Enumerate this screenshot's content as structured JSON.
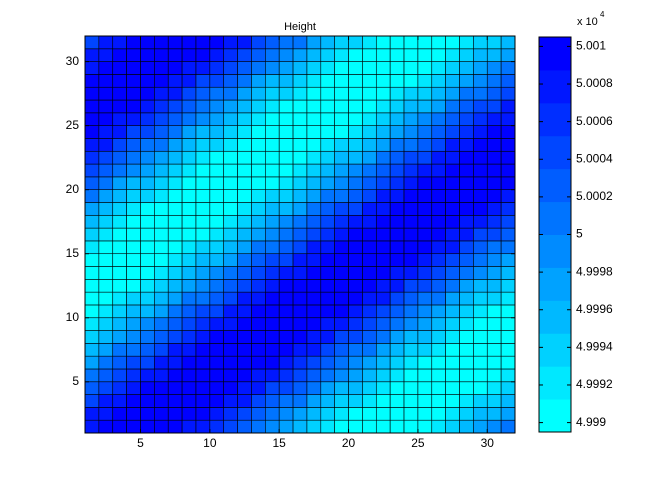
{
  "chart_data": {
    "type": "heatmap",
    "title": "Height",
    "xlim": [
      1,
      32
    ],
    "ylim": [
      1,
      32
    ],
    "xticks": [
      5,
      10,
      15,
      20,
      25,
      30
    ],
    "yticks": [
      5,
      10,
      15,
      20,
      25,
      30
    ],
    "clim": [
      4.99895,
      5.00105
    ],
    "colorbar_ticks": [
      4.999,
      4.9992,
      4.9994,
      4.9996,
      4.9998,
      5,
      5.0002,
      5.0004,
      5.0006,
      5.0008,
      5.001
    ],
    "colorbar_multiplier": {
      "base": "x 10",
      "exponent": "4"
    },
    "colormap": [
      "#00ffff",
      "#00e8ff",
      "#00d1ff",
      "#00b9ff",
      "#00a2ff",
      "#008bff",
      "#0074ff",
      "#005dff",
      "#0046ff",
      "#002eff",
      "#0017ff",
      "#0000ff"
    ],
    "edge_color": "#000000",
    "values": [
      [
        5.0008,
        5.0009,
        5.001,
        5.001,
        5.001,
        5.001,
        5.0009,
        5.0008,
        5.0007,
        5.0006,
        5.0004,
        5.0002,
        5,
        4.9999,
        4.9997,
        4.9995,
        4.9993,
        4.9992,
        4.9991,
        4.999,
        4.999,
        4.999,
        4.999,
        4.999,
        4.9991,
        4.9992,
        4.9993,
        4.9995,
        4.9997,
        4.9999,
        5
      ],
      [
        5.0007,
        5.0008,
        5.0009,
        5.001,
        5.001,
        5.001,
        5.001,
        5.001,
        5.0009,
        5.0008,
        5.0006,
        5.0005,
        5.0003,
        5.0001,
        4.9999,
        4.9997,
        4.9995,
        4.9994,
        4.9992,
        4.9991,
        4.999,
        4.999,
        4.999,
        4.999,
        4.999,
        4.9991,
        4.9992,
        4.9993,
        4.9995,
        4.9996,
        4.9998
      ],
      [
        5.0005,
        5.0007,
        5.0008,
        5.0009,
        5.001,
        5.001,
        5.001,
        5.001,
        5.001,
        5.0009,
        5.0008,
        5.0007,
        5.0005,
        5.0003,
        5.0001,
        5,
        4.9998,
        4.9996,
        4.9994,
        4.9993,
        4.9992,
        4.9991,
        4.999,
        4.999,
        4.999,
        4.999,
        4.9991,
        4.9992,
        4.9993,
        4.9994,
        4.9996
      ],
      [
        5.0003,
        5.0005,
        5.0006,
        5.0008,
        5.0009,
        5.001,
        5.001,
        5.001,
        5.001,
        5.001,
        5.0009,
        5.0008,
        5.0007,
        5.0005,
        5.0004,
        5.0002,
        5,
        4.9998,
        4.9996,
        4.9995,
        4.9993,
        4.9992,
        4.9991,
        4.999,
        4.999,
        4.999,
        4.999,
        4.999,
        4.9991,
        4.9992,
        4.9994
      ],
      [
        5,
        5.0002,
        5.0004,
        5.0006,
        5.0007,
        5.0008,
        5.0009,
        5.001,
        5.001,
        5.001,
        5.001,
        5.0009,
        5.0008,
        5.0007,
        5.0006,
        5.0004,
        5.0002,
        5,
        4.9999,
        4.9997,
        4.9995,
        4.9993,
        4.9992,
        4.9991,
        4.999,
        4.999,
        4.999,
        4.999,
        4.999,
        4.9991,
        4.9992
      ],
      [
        4.9998,
        5,
        5.0002,
        5.0004,
        5.0005,
        5.0007,
        5.0008,
        5.0009,
        5.001,
        5.001,
        5.001,
        5.001,
        5.001,
        5.0009,
        5.0008,
        5.0006,
        5.0005,
        5.0003,
        5.0001,
        4.9999,
        4.9997,
        4.9995,
        4.9994,
        4.9992,
        4.9991,
        4.999,
        4.999,
        4.999,
        4.999,
        4.999,
        4.9991
      ],
      [
        4.9996,
        4.9998,
        5,
        5.0001,
        5.0003,
        5.0005,
        5.0007,
        5.0008,
        5.0009,
        5.001,
        5.001,
        5.001,
        5.001,
        5.001,
        5.0009,
        5.0008,
        5.0007,
        5.0005,
        5.0003,
        5.0001,
        5,
        4.9998,
        4.9996,
        4.9994,
        4.9993,
        4.9992,
        4.9991,
        4.999,
        4.999,
        4.999,
        4.999
      ],
      [
        4.9994,
        4.9995,
        4.9997,
        4.9999,
        5.0001,
        5.0003,
        5.0005,
        5.0006,
        5.0008,
        5.0009,
        5.001,
        5.001,
        5.001,
        5.001,
        5.001,
        5.0009,
        5.0008,
        5.0007,
        5.0005,
        5.0004,
        5.0002,
        5,
        4.9998,
        4.9996,
        4.9995,
        4.9993,
        4.9992,
        4.9991,
        4.999,
        4.999,
        4.999
      ],
      [
        4.9992,
        4.9993,
        4.9995,
        4.9997,
        4.9999,
        5,
        5.0002,
        5.0004,
        5.0006,
        5.0007,
        5.0008,
        5.0009,
        5.001,
        5.001,
        5.001,
        5.001,
        5.0009,
        5.0008,
        5.0007,
        5.0006,
        5.0004,
        5.0002,
        5,
        4.9999,
        4.9997,
        4.9995,
        4.9993,
        4.9992,
        4.9991,
        4.999,
        4.999
      ],
      [
        4.9991,
        4.9992,
        4.9993,
        4.9995,
        4.9996,
        4.9998,
        5,
        5.0002,
        5.0004,
        5.0005,
        5.0007,
        5.0008,
        5.0009,
        5.001,
        5.001,
        5.001,
        5.001,
        5.001,
        5.0009,
        5.0008,
        5.0006,
        5.0005,
        5.0003,
        5.0001,
        4.9999,
        4.9997,
        4.9995,
        4.9994,
        4.9992,
        4.9991,
        4.999
      ],
      [
        4.999,
        4.9991,
        4.9992,
        4.9993,
        4.9994,
        4.9996,
        4.9998,
        5,
        5.0001,
        5.0003,
        5.0005,
        5.0007,
        5.0008,
        5.0009,
        5.001,
        5.001,
        5.001,
        5.001,
        5.001,
        5.0009,
        5.0008,
        5.0007,
        5.0005,
        5.0003,
        5.0001,
        5,
        4.9998,
        4.9996,
        4.9994,
        4.9993,
        4.9992
      ],
      [
        4.999,
        4.999,
        4.999,
        4.9991,
        4.9992,
        4.9994,
        4.9995,
        4.9997,
        4.9999,
        5.0001,
        5.0003,
        5.0005,
        5.0006,
        5.0008,
        5.0009,
        5.001,
        5.001,
        5.001,
        5.001,
        5.001,
        5.0009,
        5.0008,
        5.0007,
        5.0005,
        5.0004,
        5.0002,
        5,
        4.9998,
        4.9996,
        4.9995,
        4.9993
      ],
      [
        4.999,
        4.999,
        4.999,
        4.999,
        4.9991,
        4.9992,
        4.9993,
        4.9995,
        4.9997,
        4.9999,
        5,
        5.0002,
        5.0004,
        5.0006,
        5.0007,
        5.0008,
        5.0009,
        5.001,
        5.001,
        5.001,
        5.001,
        5.0009,
        5.0008,
        5.0007,
        5.0006,
        5.0004,
        5.0002,
        5,
        4.9999,
        4.9997,
        4.9995
      ],
      [
        4.999,
        4.999,
        4.999,
        4.999,
        4.999,
        4.9991,
        4.9992,
        4.9993,
        4.9995,
        4.9996,
        4.9998,
        5,
        5.0002,
        5.0004,
        5.0005,
        5.0007,
        5.0008,
        5.0009,
        5.001,
        5.001,
        5.001,
        5.001,
        5.001,
        5.0009,
        5.0008,
        5.0006,
        5.0005,
        5.0003,
        5.0001,
        4.9999,
        4.9997
      ],
      [
        4.9992,
        4.9991,
        4.999,
        4.999,
        4.999,
        4.999,
        4.9991,
        4.9992,
        4.9993,
        4.9994,
        4.9996,
        4.9998,
        5,
        5.0001,
        5.0003,
        5.0005,
        5.0007,
        5.0008,
        5.0009,
        5.001,
        5.001,
        5.001,
        5.001,
        5.001,
        5.0009,
        5.0008,
        5.0007,
        5.0005,
        5.0003,
        5.0001,
        5
      ],
      [
        4.9993,
        4.9992,
        4.9991,
        4.999,
        4.999,
        4.999,
        4.999,
        4.999,
        4.9991,
        4.9992,
        4.9994,
        4.9995,
        4.9997,
        4.9999,
        5.0001,
        5.0003,
        5.0005,
        5.0006,
        5.0008,
        5.0009,
        5.001,
        5.001,
        5.001,
        5.001,
        5.001,
        5.0009,
        5.0008,
        5.0007,
        5.0005,
        5.0004,
        5.0002
      ],
      [
        4.9995,
        4.9993,
        4.9992,
        4.9991,
        4.999,
        4.999,
        4.999,
        4.999,
        4.999,
        4.9991,
        4.9992,
        4.9993,
        4.9995,
        4.9997,
        4.9999,
        5,
        5.0002,
        5.0004,
        5.0006,
        5.0007,
        5.0008,
        5.0009,
        5.001,
        5.001,
        5.001,
        5.001,
        5.0009,
        5.0008,
        5.0007,
        5.0006,
        5.0004
      ],
      [
        4.9997,
        4.9995,
        4.9994,
        4.9992,
        4.9991,
        4.999,
        4.999,
        4.999,
        4.999,
        4.999,
        4.9991,
        4.9992,
        4.9993,
        4.9995,
        4.9996,
        4.9998,
        5,
        5.0002,
        5.0004,
        5.0005,
        5.0007,
        5.0008,
        5.0009,
        5.001,
        5.001,
        5.001,
        5.001,
        5.001,
        5.0009,
        5.0008,
        5.0006
      ],
      [
        5,
        4.9998,
        4.9996,
        4.9994,
        4.9993,
        4.9992,
        4.9991,
        4.999,
        4.999,
        4.999,
        4.999,
        4.9991,
        4.9992,
        4.9993,
        4.9994,
        4.9996,
        4.9998,
        5,
        5.0001,
        5.0003,
        5.0005,
        5.0007,
        5.0008,
        5.0009,
        5.001,
        5.001,
        5.001,
        5.001,
        5.001,
        5.0009,
        5.0008
      ],
      [
        5.0002,
        5,
        4.9998,
        4.9996,
        4.9995,
        4.9993,
        4.9992,
        4.9991,
        4.999,
        4.999,
        4.999,
        4.999,
        4.999,
        4.9991,
        4.9992,
        4.9994,
        4.9995,
        4.9997,
        4.9999,
        5.0001,
        5.0003,
        5.0005,
        5.0006,
        5.0008,
        5.0009,
        5.001,
        5.001,
        5.001,
        5.001,
        5.001,
        5.0009
      ],
      [
        5.0004,
        5.0002,
        5,
        4.9999,
        4.9997,
        4.9995,
        4.9993,
        4.9992,
        4.9991,
        4.999,
        4.999,
        4.999,
        4.999,
        4.999,
        4.9991,
        4.9992,
        4.9993,
        4.9995,
        4.9997,
        4.9999,
        5,
        5.0002,
        5.0004,
        5.0006,
        5.0007,
        5.0008,
        5.0009,
        5.001,
        5.001,
        5.001,
        5.001
      ],
      [
        5.0006,
        5.0005,
        5.0003,
        5.0001,
        4.9999,
        4.9997,
        4.9995,
        4.9994,
        4.9992,
        4.9991,
        4.999,
        4.999,
        4.999,
        4.999,
        4.999,
        4.9991,
        4.9992,
        4.9993,
        4.9995,
        4.9996,
        4.9998,
        5,
        5.0002,
        5.0004,
        5.0005,
        5.0007,
        5.0008,
        5.0009,
        5.001,
        5.001,
        5.001
      ],
      [
        5.0008,
        5.0007,
        5.0005,
        5.0003,
        5.0001,
        5,
        4.9998,
        4.9996,
        4.9994,
        4.9993,
        4.9992,
        4.9991,
        4.999,
        4.999,
        4.999,
        4.999,
        4.9991,
        4.9992,
        4.9993,
        4.9994,
        4.9996,
        4.9998,
        5,
        5.0001,
        5.0003,
        5.0005,
        5.0007,
        5.0008,
        5.0009,
        5.001,
        5.001
      ],
      [
        5.0009,
        5.0008,
        5.0007,
        5.0005,
        5.0004,
        5.0002,
        5,
        4.9998,
        4.9996,
        4.9995,
        4.9993,
        4.9992,
        4.9991,
        4.999,
        4.999,
        4.999,
        4.999,
        4.999,
        4.9991,
        4.9992,
        4.9994,
        4.9995,
        4.9997,
        4.9999,
        5.0001,
        5.0003,
        5.0005,
        5.0006,
        5.0008,
        5.0009,
        5.001
      ],
      [
        5.001,
        5.0009,
        5.0008,
        5.0007,
        5.0006,
        5.0004,
        5.0002,
        5,
        4.9999,
        4.9997,
        4.9995,
        4.9993,
        4.9992,
        4.9991,
        4.999,
        4.999,
        4.999,
        4.999,
        4.999,
        4.9991,
        4.9992,
        4.9993,
        4.9995,
        4.9997,
        4.9999,
        5,
        5.0002,
        5.0004,
        5.0006,
        5.0007,
        5.0008
      ],
      [
        5.001,
        5.001,
        5.001,
        5.0009,
        5.0008,
        5.0006,
        5.0005,
        5.0003,
        5.0001,
        4.9999,
        4.9997,
        4.9995,
        4.9994,
        4.9992,
        4.9991,
        4.999,
        4.999,
        4.999,
        4.999,
        4.999,
        4.9991,
        4.9992,
        4.9993,
        4.9995,
        4.9996,
        4.9998,
        5,
        5.0002,
        5.0004,
        5.0005,
        5.0007
      ],
      [
        5.001,
        5.001,
        5.001,
        5.001,
        5.0009,
        5.0008,
        5.0007,
        5.0005,
        5.0003,
        5.0001,
        5,
        4.9998,
        4.9996,
        4.9994,
        4.9993,
        4.9992,
        4.9991,
        4.999,
        4.999,
        4.999,
        4.999,
        4.9991,
        4.9992,
        4.9993,
        4.9994,
        4.9996,
        4.9998,
        5,
        5.0001,
        5.0003,
        5.0005
      ],
      [
        5.001,
        5.001,
        5.001,
        5.001,
        5.001,
        5.0009,
        5.0008,
        5.0007,
        5.0005,
        5.0004,
        5.0002,
        5,
        4.9998,
        4.9996,
        4.9995,
        4.9993,
        4.9992,
        4.9991,
        4.999,
        4.999,
        4.999,
        4.999,
        4.999,
        4.9991,
        4.9992,
        4.9994,
        4.9995,
        4.9997,
        4.9999,
        5.0001,
        5.0003
      ],
      [
        5.0008,
        5.0009,
        5.001,
        5.001,
        5.001,
        5.001,
        5.0009,
        5.0008,
        5.0007,
        5.0006,
        5.0004,
        5.0002,
        5,
        4.9999,
        4.9997,
        4.9995,
        4.9993,
        4.9992,
        4.9991,
        4.999,
        4.999,
        4.999,
        4.999,
        4.999,
        4.9991,
        4.9992,
        4.9993,
        4.9995,
        4.9997,
        4.9999,
        5
      ],
      [
        5.0007,
        5.0008,
        5.0009,
        5.001,
        5.001,
        5.001,
        5.001,
        5.001,
        5.0009,
        5.0008,
        5.0006,
        5.0005,
        5.0003,
        5.0001,
        4.9999,
        4.9997,
        4.9995,
        4.9994,
        4.9992,
        4.9991,
        4.999,
        4.999,
        4.999,
        4.999,
        4.999,
        4.9991,
        4.9992,
        4.9993,
        4.9995,
        4.9996,
        4.9998
      ],
      [
        5.0005,
        5.0007,
        5.0008,
        5.0009,
        5.001,
        5.001,
        5.001,
        5.001,
        5.001,
        5.0009,
        5.0008,
        5.0007,
        5.0005,
        5.0003,
        5.0001,
        5,
        4.9998,
        4.9996,
        4.9994,
        4.9993,
        4.9992,
        4.9991,
        4.999,
        4.999,
        4.999,
        4.999,
        4.9991,
        4.9992,
        4.9993,
        4.9994,
        4.9996
      ]
    ]
  }
}
